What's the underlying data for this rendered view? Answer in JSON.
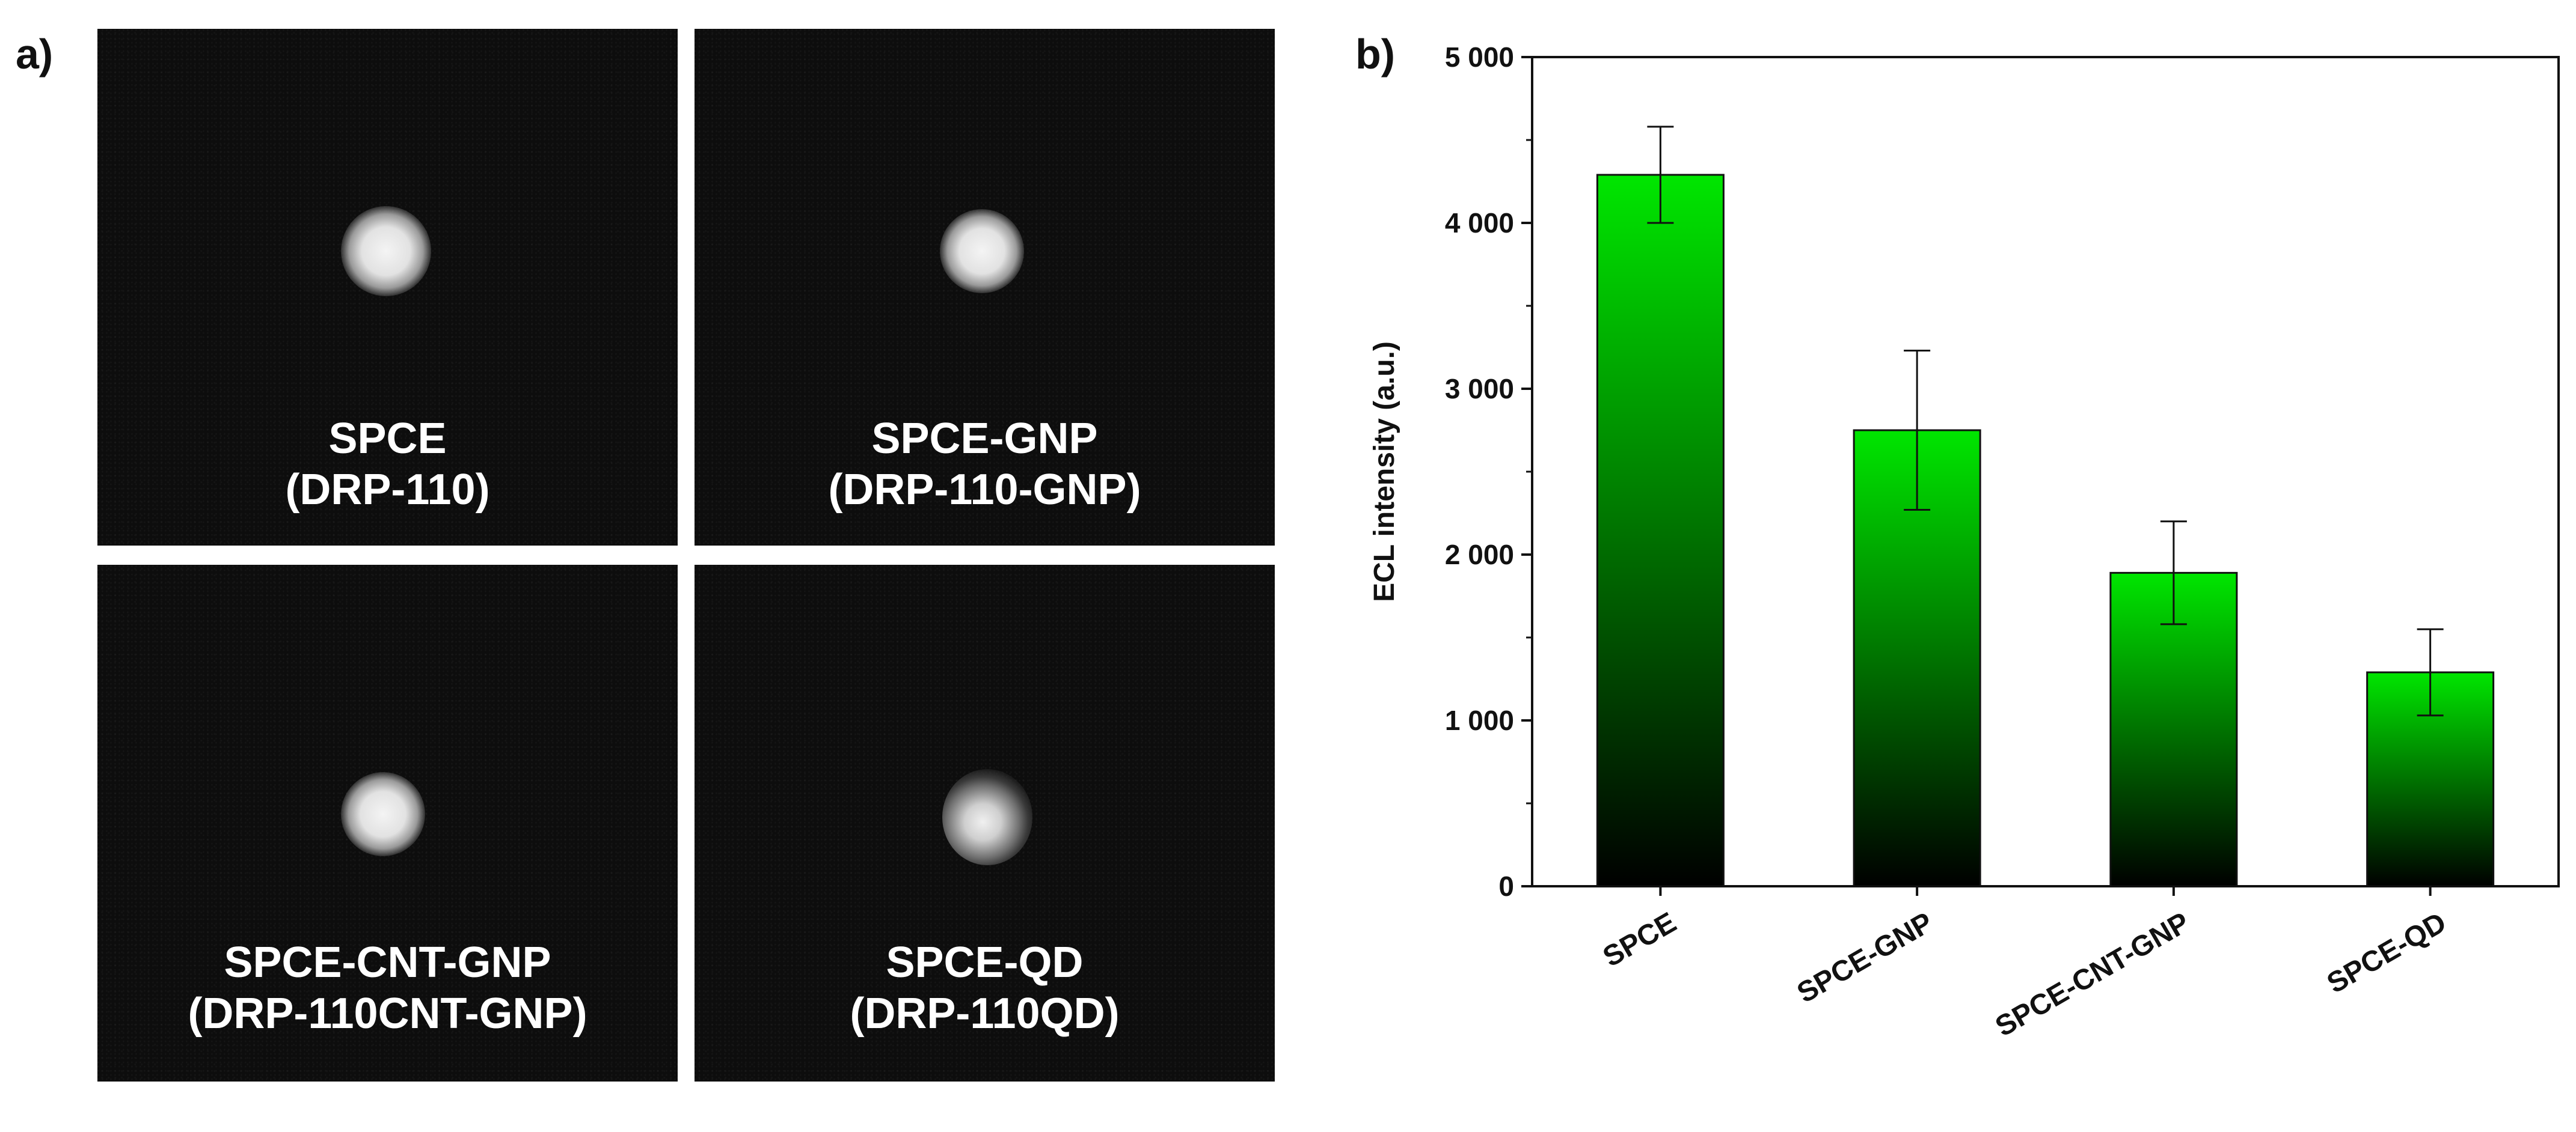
{
  "panels": {
    "a_label": "a)",
    "b_label": "b)"
  },
  "images": [
    {
      "line1": "SPCE",
      "line2": "(DRP-110)"
    },
    {
      "line1": "SPCE-GNP",
      "line2": "(DRP-110-GNP)"
    },
    {
      "line1": "SPCE-CNT-GNP",
      "line2": "(DRP-110CNT-GNP)"
    },
    {
      "line1": "SPCE-QD",
      "line2": "(DRP-110QD)"
    }
  ],
  "chart_data": {
    "type": "bar",
    "categories": [
      "SPCE",
      "SPCE-GNP",
      "SPCE-CNT-GNP",
      "SPCE-QD"
    ],
    "values": [
      4290,
      2750,
      1890,
      1290
    ],
    "errors": [
      290,
      480,
      310,
      260
    ],
    "ylabel": "ECL intensity (a.u.)",
    "xlabel": "",
    "ylim": [
      0,
      5000
    ],
    "yticks": [
      0,
      1000,
      2000,
      3000,
      4000,
      5000
    ],
    "ytick_labels": [
      "0",
      "1 000",
      "2 000",
      "3 000",
      "4 000",
      "5 000"
    ],
    "bar_gradient": {
      "top": "#00e600",
      "bottom": "#000000"
    },
    "grid": false
  }
}
